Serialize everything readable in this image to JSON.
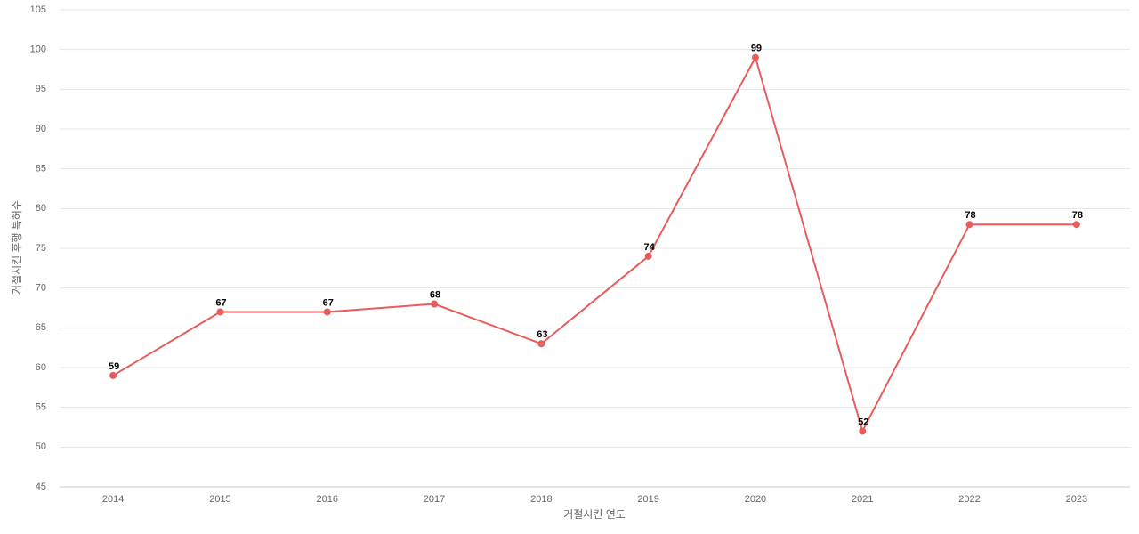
{
  "chart_data": {
    "type": "line",
    "x_label": "거절시킨 연도",
    "y_label": "거절시킨 후행 특허수",
    "categories": [
      "2014",
      "2015",
      "2016",
      "2017",
      "2018",
      "2019",
      "2020",
      "2021",
      "2022",
      "2023"
    ],
    "series": [
      {
        "name": "거절시킨 후행 특허수",
        "color": "#e85c5c",
        "values": [
          59,
          67,
          67,
          68,
          63,
          74,
          99,
          52,
          78,
          78
        ]
      }
    ],
    "ylim": [
      45,
      105
    ],
    "yticks": [
      45,
      50,
      55,
      60,
      65,
      70,
      75,
      80,
      85,
      90,
      95,
      100,
      105
    ],
    "grid": true
  }
}
